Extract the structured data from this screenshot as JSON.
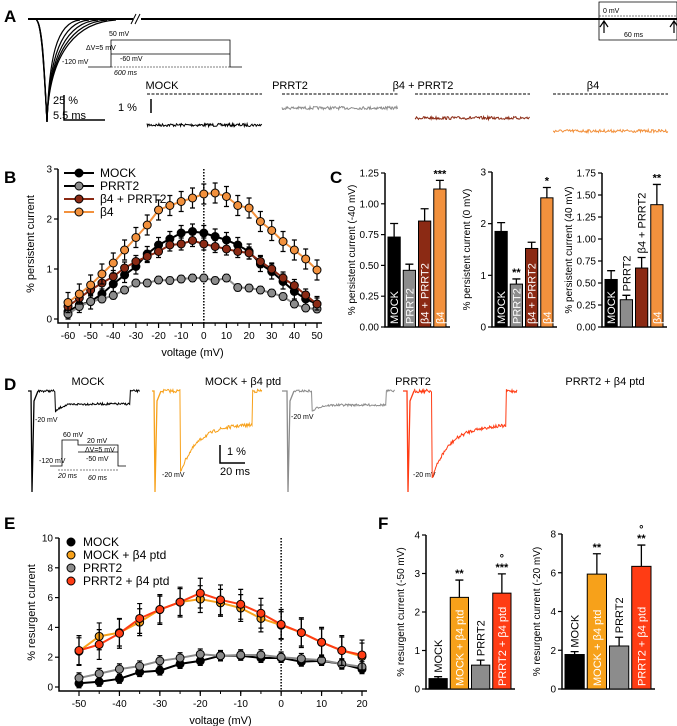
{
  "panel_labels": [
    "A",
    "B",
    "C",
    "D",
    "E",
    "F"
  ],
  "panel_A": {
    "protocol": {
      "top": "50 mV",
      "step": "ΔV=5 mV",
      "mid": "-60 mV",
      "hold": "-120 mV",
      "duration": "600 ms"
    },
    "inset": {
      "level": "0 mV",
      "duration": "60 ms"
    },
    "scale_y": "25 %",
    "scale_x": "5.5 ms",
    "trace_scale": "1 %",
    "trace_labels": [
      "MOCK",
      "PRRT2",
      "β4 + PRRT2",
      "β4"
    ],
    "colors": [
      "#000000",
      "#8c8c8c",
      "#8b2a14",
      "#f2913d"
    ]
  },
  "panel_D": {
    "trace_labels": [
      "MOCK",
      "MOCK + β4 ptd",
      "PRRT2",
      "PRRT2 + β4 ptd"
    ],
    "colors": [
      "#000000",
      "#f7a11a",
      "#8c8c8c",
      "#ff3c14"
    ],
    "level_label": "-20 mV",
    "protocol": {
      "pre": "60 mV",
      "top": "20 mV",
      "step": "ΔV=5 mV",
      "bottom": "-50 mV",
      "hold": "-120 mV",
      "pre_duration": "20 ms",
      "duration": "60 ms"
    },
    "scale_y": "1 %",
    "scale_x": "20 ms"
  },
  "chart_data": [
    {
      "id": "B",
      "type": "line",
      "xlabel": "voltage (mV)",
      "ylabel": "% persistent current",
      "xlim": [
        -60,
        50
      ],
      "ylim": [
        0,
        3
      ],
      "xticks": [
        -60,
        -50,
        -40,
        -30,
        -20,
        -10,
        0,
        10,
        20,
        30,
        40,
        50
      ],
      "yticks": [
        0,
        1,
        2,
        3
      ],
      "x": [
        -60,
        -55,
        -50,
        -45,
        -40,
        -35,
        -30,
        -25,
        -20,
        -15,
        -10,
        -5,
        0,
        5,
        10,
        15,
        20,
        25,
        30,
        35,
        40,
        45,
        50
      ],
      "legend_placement": "top-left",
      "series": [
        {
          "name": "MOCK",
          "color": "#000000",
          "err": 0.15,
          "values": [
            0.15,
            0.28,
            0.35,
            0.5,
            0.7,
            0.88,
            1.05,
            1.3,
            1.48,
            1.6,
            1.72,
            1.75,
            1.72,
            1.65,
            1.58,
            1.48,
            1.35,
            1.1,
            0.95,
            0.75,
            0.55,
            0.4,
            0.3
          ]
        },
        {
          "name": "PRRT2",
          "color": "#8c8c8c",
          "err": 0.07,
          "values": [
            0.1,
            0.25,
            0.35,
            0.4,
            0.47,
            0.58,
            0.72,
            0.72,
            0.78,
            0.77,
            0.8,
            0.82,
            0.82,
            0.77,
            0.82,
            0.63,
            0.62,
            0.58,
            0.52,
            0.45,
            0.3,
            0.22,
            0.2
          ]
        },
        {
          "name": "β4 + PRRT2",
          "color": "#8b2a14",
          "err": 0.12,
          "values": [
            0.25,
            0.42,
            0.58,
            0.72,
            0.85,
            1.02,
            1.15,
            1.25,
            1.35,
            1.48,
            1.5,
            1.57,
            1.5,
            1.45,
            1.4,
            1.35,
            1.32,
            1.15,
            1.0,
            0.82,
            0.67,
            0.48,
            0.3
          ]
        },
        {
          "name": "β4",
          "color": "#f2913d",
          "err": 0.2,
          "values": [
            0.33,
            0.5,
            0.68,
            0.9,
            1.12,
            1.38,
            1.63,
            1.88,
            2.18,
            2.27,
            2.35,
            2.42,
            2.5,
            2.52,
            2.45,
            2.27,
            2.22,
            1.95,
            1.77,
            1.55,
            1.38,
            1.2,
            0.98
          ]
        }
      ]
    },
    {
      "id": "C1",
      "type": "bar",
      "ylabel": "% persistent current (-40 mV)",
      "ylim": [
        0,
        1.25
      ],
      "yticks": [
        "0.00",
        "0.25",
        "0.50",
        "0.75",
        "1.00",
        "1.25"
      ],
      "categories": [
        "MOCK",
        "PRRT2",
        "β4 + PRRT2",
        "β4"
      ],
      "colors": [
        "#000000",
        "#8c8c8c",
        "#8b2a14",
        "#f2913d"
      ],
      "values": [
        0.73,
        0.46,
        0.86,
        1.12
      ],
      "errors": [
        0.11,
        0.05,
        0.1,
        0.07
      ],
      "annotations": [
        "",
        "",
        "",
        "***"
      ]
    },
    {
      "id": "C2",
      "type": "bar",
      "ylabel": "% persistent current (0 mV)",
      "ylim": [
        0,
        3
      ],
      "yticks": [
        "0",
        "1",
        "2",
        "3"
      ],
      "categories": [
        "MOCK",
        "PRRT2",
        "β4 + PRRT2",
        "β4"
      ],
      "colors": [
        "#000000",
        "#8c8c8c",
        "#8b2a14",
        "#f2913d"
      ],
      "values": [
        1.85,
        0.83,
        1.52,
        2.5
      ],
      "errors": [
        0.17,
        0.1,
        0.12,
        0.2
      ],
      "annotations": [
        "",
        "**",
        "",
        "*"
      ]
    },
    {
      "id": "C3",
      "type": "bar",
      "ylabel": "% persistent current (40 mV)",
      "ylim": [
        0,
        1.75
      ],
      "yticks": [
        "0.00",
        "0.25",
        "0.50",
        "0.75",
        "1.00",
        "1.25",
        "1.50",
        "1.75"
      ],
      "categories": [
        "MOCK",
        "PRRT2",
        "β4 + PRRT2",
        "β4"
      ],
      "colors": [
        "#000000",
        "#8c8c8c",
        "#8b2a14",
        "#f2913d"
      ],
      "values": [
        0.54,
        0.31,
        0.67,
        1.39
      ],
      "errors": [
        0.1,
        0.05,
        0.12,
        0.23
      ],
      "annotations": [
        "",
        "",
        "",
        "**"
      ]
    },
    {
      "id": "E",
      "type": "line",
      "xlabel": "voltage (mV)",
      "ylabel": "% resurgent current",
      "xlim": [
        -50,
        20
      ],
      "ylim": [
        0,
        10
      ],
      "xticks": [
        -50,
        -40,
        -30,
        -20,
        -10,
        0,
        10,
        20
      ],
      "yticks": [
        0,
        2,
        4,
        6,
        8,
        10
      ],
      "x": [
        -50,
        -45,
        -40,
        -35,
        -30,
        -25,
        -20,
        -15,
        -10,
        -5,
        0,
        5,
        10,
        15,
        20
      ],
      "legend_placement": "top-left",
      "series": [
        {
          "name": "MOCK",
          "color": "#000000",
          "err": 0.3,
          "values": [
            0.25,
            0.35,
            0.55,
            1.0,
            1.1,
            1.55,
            1.75,
            2.1,
            2.1,
            1.95,
            1.95,
            1.7,
            1.75,
            1.55,
            1.2
          ]
        },
        {
          "name": "MOCK + β4 ptd",
          "color": "#f7a11a",
          "err": 0.9,
          "values": [
            2.4,
            3.4,
            3.65,
            4.35,
            5.2,
            5.7,
            5.9,
            5.65,
            5.3,
            4.6,
            4.15,
            3.65,
            3.0,
            2.45,
            2.05
          ]
        },
        {
          "name": "PRRT2",
          "color": "#8c8c8c",
          "err": 0.35,
          "values": [
            0.6,
            0.9,
            1.2,
            1.4,
            1.75,
            1.95,
            2.2,
            2.1,
            2.15,
            2.15,
            2.0,
            1.9,
            1.8,
            1.55,
            1.35
          ]
        },
        {
          "name": "PRRT2 + β4 ptd",
          "color": "#ff3c14",
          "err": 1.0,
          "values": [
            2.45,
            2.85,
            3.6,
            4.6,
            5.2,
            5.7,
            6.3,
            5.85,
            5.55,
            4.95,
            4.2,
            3.65,
            3.0,
            2.45,
            2.15
          ]
        }
      ]
    },
    {
      "id": "F1",
      "type": "bar",
      "ylabel": "% resurgent current (-50 mV)",
      "ylim": [
        0,
        4
      ],
      "yticks": [
        "0",
        "1",
        "2",
        "3",
        "4"
      ],
      "categories": [
        "MOCK",
        "MOCK + β4 ptd",
        "PRRT2",
        "PRRT2 + β4 ptd"
      ],
      "colors": [
        "#000000",
        "#f7a11a",
        "#8c8c8c",
        "#ff3c14"
      ],
      "values": [
        0.27,
        2.38,
        0.62,
        2.49
      ],
      "errors": [
        0.05,
        0.45,
        0.13,
        0.5
      ],
      "annotations": [
        "",
        "**",
        "",
        "°\n***"
      ]
    },
    {
      "id": "F2",
      "type": "bar",
      "ylabel": "% resurgent current (-20 mV)",
      "ylim": [
        0,
        8
      ],
      "yticks": [
        "0",
        "2",
        "4",
        "6",
        "8"
      ],
      "categories": [
        "MOCK",
        "MOCK + β4 ptd",
        "PRRT2",
        "PRRT2 + β4 ptd"
      ],
      "colors": [
        "#000000",
        "#f7a11a",
        "#8c8c8c",
        "#ff3c14"
      ],
      "values": [
        1.78,
        5.93,
        2.22,
        6.33
      ],
      "errors": [
        0.15,
        1.05,
        0.45,
        1.1
      ],
      "annotations": [
        "",
        "**",
        "",
        "°\n**"
      ]
    }
  ]
}
